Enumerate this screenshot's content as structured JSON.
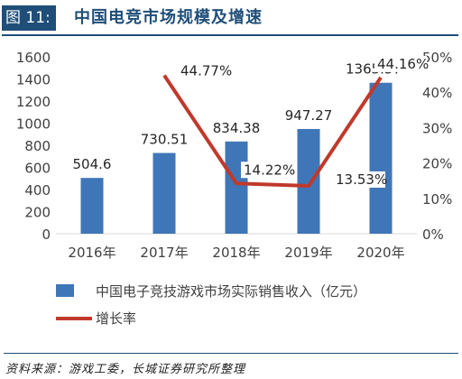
{
  "header": {
    "figure_tag": "图 11:",
    "title": "中国电竞市场规模及增速"
  },
  "chart_data": {
    "type": "bar",
    "title": "中国电竞市场规模及增速",
    "categories": [
      "2016年",
      "2017年",
      "2018年",
      "2019年",
      "2020年"
    ],
    "series": [
      {
        "name": "中国电子竞技游戏市场实际销售收入（亿元）",
        "type": "bar",
        "axis": "left",
        "color": "#3f76b8",
        "values": [
          504.6,
          730.51,
          834.38,
          947.27,
          1365.57
        ],
        "labels": [
          "504.6",
          "730.51",
          "834.38",
          "947.27",
          "1365.57"
        ]
      },
      {
        "name": "增长率",
        "type": "line",
        "axis": "right",
        "color": "#c0392b",
        "values": [
          null,
          44.77,
          14.22,
          13.53,
          44.16
        ],
        "labels": [
          "",
          "44.77%",
          "14.22%",
          "13.53%",
          "44.16%"
        ]
      }
    ],
    "y_left": {
      "ylim": [
        0,
        1600
      ],
      "ticks": [
        "0",
        "200",
        "400",
        "600",
        "800",
        "1000",
        "1200",
        "1400",
        "1600"
      ]
    },
    "y_right": {
      "ylim": [
        0,
        50
      ],
      "ticks": [
        "0%",
        "10%",
        "20%",
        "30%",
        "40%",
        "50%"
      ]
    },
    "legend_position": "bottom",
    "grid": false
  },
  "footer": {
    "source": "资料来源：游戏工委，长城证券研究所整理"
  }
}
